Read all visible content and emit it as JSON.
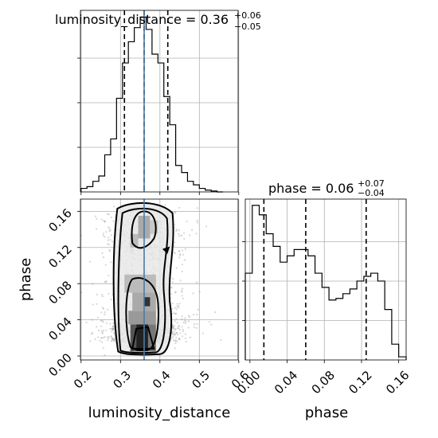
{
  "chart_data": {
    "type": "corner",
    "parameters": [
      "luminosity_distance",
      "phase"
    ],
    "truth": {
      "luminosity_distance": 0.36,
      "color": "#4a7ba7"
    },
    "colors": {
      "line": "#000000",
      "truth": "#4a7ba7",
      "grid": "#b0b0b0",
      "scatter": "#8a8a8a"
    },
    "panels": [
      {
        "id": "luminosity_distance_hist",
        "type": "histogram",
        "title": {
          "prefix": "luminosity_distance = ",
          "value": "0.36",
          "upper": "+0.06",
          "lower": "−0.05"
        },
        "xlim": [
          0.2,
          0.6
        ],
        "bin_edges": [
          0.2,
          0.215,
          0.23,
          0.245,
          0.26,
          0.275,
          0.29,
          0.305,
          0.32,
          0.335,
          0.35,
          0.365,
          0.38,
          0.395,
          0.41,
          0.425,
          0.44,
          0.455,
          0.47,
          0.485,
          0.5,
          0.515,
          0.53,
          0.545,
          0.56
        ],
        "density": [
          0.02,
          0.03,
          0.06,
          0.09,
          0.21,
          0.3,
          0.53,
          0.73,
          0.85,
          0.93,
          0.99,
          0.92,
          0.78,
          0.73,
          0.54,
          0.38,
          0.15,
          0.11,
          0.06,
          0.04,
          0.02,
          0.01,
          0.005,
          0.0
        ],
        "quantiles": [
          0.31,
          0.36,
          0.42
        ],
        "truth_line": 0.36
      },
      {
        "id": "joint",
        "type": "2d-density",
        "xlabel": "luminosity_distance",
        "ylabel": "phase",
        "xlim": [
          0.2,
          0.6
        ],
        "ylim": [
          0.0,
          0.17
        ],
        "x_ticks": [
          "0.2",
          "0.3",
          "0.4",
          "0.5",
          "0.6"
        ],
        "y_ticks": [
          "0.00",
          "0.04",
          "0.08",
          "0.12",
          "0.16"
        ],
        "truth_line": 0.36
      },
      {
        "id": "phase_hist",
        "type": "histogram",
        "title": {
          "prefix": "phase = ",
          "value": "0.06",
          "upper": "+0.07",
          "lower": "−0.04"
        },
        "xlabel": "phase",
        "xlim": [
          -0.005,
          0.168
        ],
        "x_ticks": [
          "0.00",
          "0.04",
          "0.08",
          "0.12",
          "0.16"
        ],
        "bin_edges": [
          -0.005,
          0.0025,
          0.01,
          0.0175,
          0.025,
          0.0325,
          0.04,
          0.0475,
          0.055,
          0.0625,
          0.07,
          0.0775,
          0.085,
          0.0925,
          0.1,
          0.1075,
          0.115,
          0.1225,
          0.13,
          0.1375,
          0.145,
          0.1525,
          0.16,
          0.168
        ],
        "density": [
          0.55,
          0.98,
          0.92,
          0.8,
          0.72,
          0.62,
          0.66,
          0.7,
          0.7,
          0.66,
          0.55,
          0.46,
          0.38,
          0.39,
          0.42,
          0.45,
          0.5,
          0.53,
          0.55,
          0.5,
          0.32,
          0.1,
          0.02
        ],
        "quantiles": [
          0.015,
          0.06,
          0.125
        ]
      }
    ]
  }
}
